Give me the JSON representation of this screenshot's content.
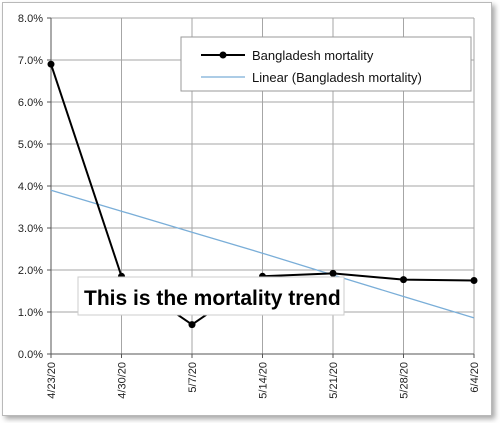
{
  "chart_data": {
    "type": "line",
    "x": [
      "4/23/20",
      "4/30/20",
      "5/7/20",
      "5/14/20",
      "5/21/20",
      "5/28/20",
      "6/4/20"
    ],
    "ylim": [
      0,
      8
    ],
    "y_ticks": [
      "0.0%",
      "1.0%",
      "2.0%",
      "3.0%",
      "4.0%",
      "5.0%",
      "6.0%",
      "7.0%",
      "8.0%"
    ],
    "series": [
      {
        "name": "Bangladesh mortality",
        "color": "#000000",
        "marker": "circle",
        "values": [
          6.9,
          1.85,
          0.7,
          1.85,
          1.92,
          1.77,
          1.75
        ]
      },
      {
        "name": "Linear (Bangladesh mortality)",
        "color": "#7aaed8",
        "marker": "none",
        "trend": "linear",
        "values": [
          3.9,
          3.4,
          2.9,
          2.4,
          1.88,
          1.37,
          0.86
        ]
      }
    ],
    "legend_position": "top-right",
    "grid": true,
    "annotation": "This is the mortality trend"
  }
}
